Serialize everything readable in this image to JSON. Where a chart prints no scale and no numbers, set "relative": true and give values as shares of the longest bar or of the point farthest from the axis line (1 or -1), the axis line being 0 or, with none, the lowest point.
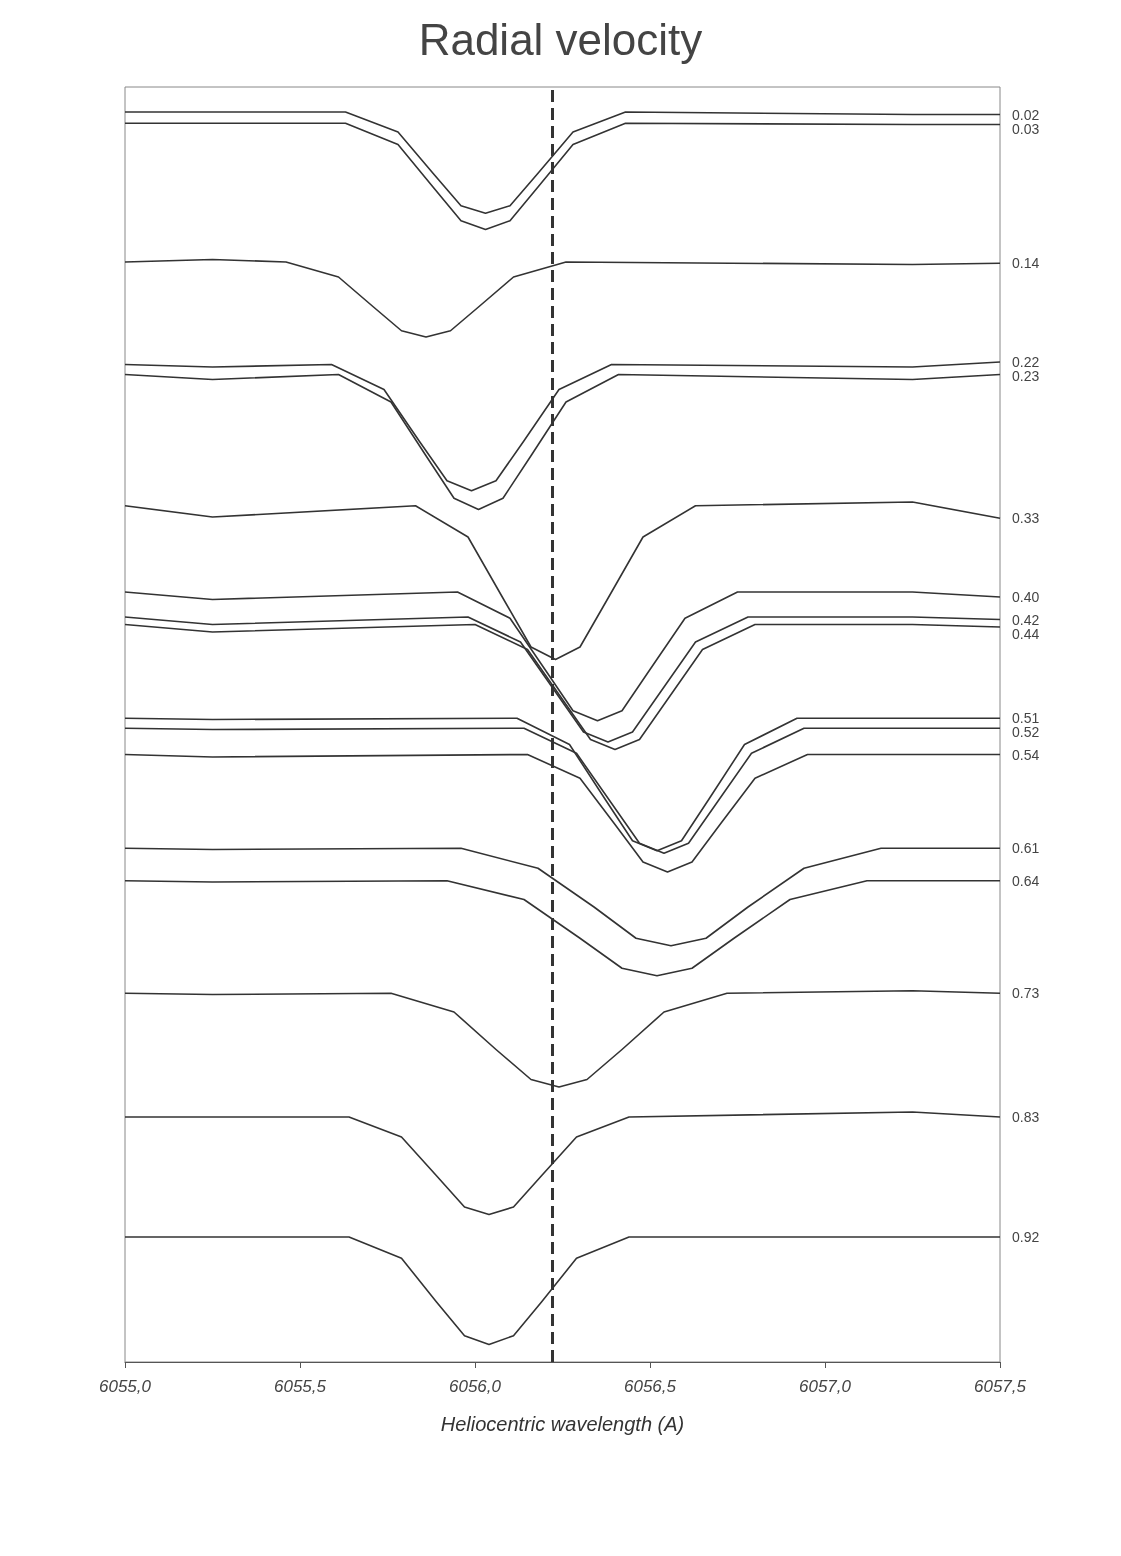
{
  "chart_data": {
    "type": "line",
    "title": "Radial velocity",
    "xlabel": "Heliocentric wavelength (A)",
    "relative": true,
    "xlim": [
      6055.0,
      6057.5
    ],
    "xticks": [
      {
        "value": 6055.0,
        "label": "6055,0"
      },
      {
        "value": 6055.5,
        "label": "6055,5"
      },
      {
        "value": 6056.0,
        "label": "6056,0"
      },
      {
        "value": 6056.5,
        "label": "6056,5"
      },
      {
        "value": 6057.0,
        "label": "6057,0"
      },
      {
        "value": 6057.5,
        "label": "6057,5"
      }
    ],
    "grid": false,
    "legend": false,
    "marker": "none",
    "line_style": "solid",
    "ref_lines": [
      {
        "axis": "x",
        "value": 6056.22,
        "label": null,
        "color": "#333333",
        "line_style": "dashed"
      }
    ],
    "series": [
      {
        "name": "0.02",
        "color": "#333333",
        "x": [
          6055.0,
          6055.25,
          6055.63,
          6055.78,
          6055.88,
          6055.96,
          6056.03,
          6056.1,
          6056.18,
          6056.28,
          6056.43,
          6057.25,
          6057.5
        ],
        "values": [
          1.0,
          1.0,
          1.0,
          0.984,
          0.951,
          0.925,
          0.919,
          0.925,
          0.951,
          0.984,
          1.0,
          0.998,
          0.998
        ]
      },
      {
        "name": "0.03",
        "color": "#333333",
        "x": [
          6055.0,
          6055.25,
          6055.63,
          6055.78,
          6055.88,
          6055.96,
          6056.03,
          6056.1,
          6056.18,
          6056.28,
          6056.43,
          6057.25,
          6057.5
        ],
        "values": [
          0.991,
          0.991,
          0.991,
          0.974,
          0.94,
          0.913,
          0.906,
          0.913,
          0.94,
          0.974,
          0.991,
          0.99,
          0.99
        ]
      },
      {
        "name": "0.14",
        "color": "#333333",
        "x": [
          6055.0,
          6055.25,
          6055.46,
          6055.61,
          6055.71,
          6055.79,
          6055.86,
          6055.93,
          6056.01,
          6056.11,
          6056.26,
          6057.25,
          6057.5
        ],
        "values": [
          0.88,
          0.882,
          0.88,
          0.868,
          0.844,
          0.825,
          0.82,
          0.825,
          0.844,
          0.868,
          0.88,
          0.878,
          0.879
        ]
      },
      {
        "name": "0.22",
        "color": "#333333",
        "x": [
          6055.0,
          6055.25,
          6055.59,
          6055.74,
          6055.84,
          6055.92,
          6055.99,
          6056.06,
          6056.14,
          6056.24,
          6056.39,
          6057.25,
          6057.5
        ],
        "values": [
          0.798,
          0.796,
          0.798,
          0.778,
          0.737,
          0.705,
          0.697,
          0.705,
          0.737,
          0.778,
          0.798,
          0.796,
          0.8
        ]
      },
      {
        "name": "0.23",
        "color": "#333333",
        "x": [
          6055.0,
          6055.25,
          6055.61,
          6055.76,
          6055.86,
          6055.94,
          6056.01,
          6056.08,
          6056.16,
          6056.26,
          6056.41,
          6057.25,
          6057.5
        ],
        "values": [
          0.79,
          0.786,
          0.79,
          0.768,
          0.725,
          0.691,
          0.682,
          0.691,
          0.725,
          0.768,
          0.79,
          0.786,
          0.79
        ]
      },
      {
        "name": "0.33",
        "color": "#333333",
        "x": [
          6055.0,
          6055.25,
          6055.83,
          6055.98,
          6056.08,
          6056.16,
          6056.23,
          6056.3,
          6056.38,
          6056.48,
          6056.63,
          6057.25,
          6057.5
        ],
        "values": [
          0.685,
          0.676,
          0.685,
          0.66,
          0.611,
          0.572,
          0.562,
          0.572,
          0.611,
          0.66,
          0.685,
          0.688,
          0.675
        ]
      },
      {
        "name": "0.40",
        "color": "#333333",
        "x": [
          6055.0,
          6055.25,
          6055.95,
          6056.1,
          6056.2,
          6056.28,
          6056.35,
          6056.42,
          6056.5,
          6056.6,
          6056.75,
          6057.25,
          6057.5
        ],
        "values": [
          0.616,
          0.61,
          0.616,
          0.595,
          0.554,
          0.521,
          0.513,
          0.521,
          0.554,
          0.595,
          0.616,
          0.616,
          0.612
        ]
      },
      {
        "name": "0.42",
        "color": "#333333",
        "x": [
          6055.0,
          6055.25,
          6055.98,
          6056.13,
          6056.23,
          6056.31,
          6056.38,
          6056.45,
          6056.53,
          6056.63,
          6056.78,
          6057.25,
          6057.5
        ],
        "values": [
          0.596,
          0.59,
          0.596,
          0.576,
          0.536,
          0.504,
          0.496,
          0.504,
          0.536,
          0.576,
          0.596,
          0.596,
          0.594
        ]
      },
      {
        "name": "0.44",
        "color": "#333333",
        "x": [
          6055.0,
          6055.25,
          6056.0,
          6056.15,
          6056.25,
          6056.33,
          6056.4,
          6056.47,
          6056.55,
          6056.65,
          6056.8,
          6057.25,
          6057.5
        ],
        "values": [
          0.59,
          0.584,
          0.59,
          0.57,
          0.53,
          0.498,
          0.49,
          0.498,
          0.53,
          0.57,
          0.59,
          0.59,
          0.588
        ]
      },
      {
        "name": "0.51",
        "color": "#333333",
        "x": [
          6055.0,
          6055.25,
          6056.12,
          6056.27,
          6056.37,
          6056.45,
          6056.52,
          6056.59,
          6056.67,
          6056.77,
          6056.92,
          6057.25,
          6057.5
        ],
        "values": [
          0.515,
          0.514,
          0.515,
          0.494,
          0.451,
          0.417,
          0.409,
          0.417,
          0.451,
          0.494,
          0.515,
          0.515,
          0.515
        ]
      },
      {
        "name": "0.52",
        "color": "#333333",
        "x": [
          6055.0,
          6055.25,
          6056.14,
          6056.29,
          6056.39,
          6056.47,
          6056.54,
          6056.61,
          6056.69,
          6056.79,
          6056.94,
          6057.25,
          6057.5
        ],
        "values": [
          0.507,
          0.506,
          0.507,
          0.487,
          0.447,
          0.415,
          0.407,
          0.415,
          0.447,
          0.487,
          0.507,
          0.507,
          0.507
        ]
      },
      {
        "name": "0.54",
        "color": "#333333",
        "x": [
          6055.0,
          6055.25,
          6056.15,
          6056.3,
          6056.4,
          6056.48,
          6056.55,
          6056.62,
          6056.7,
          6056.8,
          6056.95,
          6057.25,
          6057.5
        ],
        "values": [
          0.486,
          0.484,
          0.486,
          0.467,
          0.43,
          0.4,
          0.392,
          0.4,
          0.43,
          0.467,
          0.486,
          0.486,
          0.486
        ]
      },
      {
        "name": "0.61",
        "color": "#333333",
        "x": [
          6055.0,
          6055.25,
          6055.96,
          6056.18,
          6056.34,
          6056.46,
          6056.56,
          6056.66,
          6056.78,
          6056.94,
          6057.16,
          6057.25,
          6057.5
        ],
        "values": [
          0.411,
          0.41,
          0.411,
          0.395,
          0.364,
          0.339,
          0.333,
          0.339,
          0.364,
          0.395,
          0.411,
          0.411,
          0.411
        ]
      },
      {
        "name": "0.64",
        "color": "#333333",
        "x": [
          6055.0,
          6055.25,
          6055.92,
          6056.14,
          6056.3,
          6056.42,
          6056.52,
          6056.62,
          6056.74,
          6056.9,
          6057.12,
          6057.25,
          6057.5
        ],
        "values": [
          0.385,
          0.384,
          0.385,
          0.37,
          0.339,
          0.315,
          0.309,
          0.315,
          0.339,
          0.37,
          0.385,
          0.385,
          0.385
        ]
      },
      {
        "name": "0.73",
        "color": "#333333",
        "x": [
          6055.0,
          6055.25,
          6055.76,
          6055.94,
          6056.06,
          6056.16,
          6056.24,
          6056.32,
          6056.42,
          6056.54,
          6056.72,
          6057.25,
          6057.5
        ],
        "values": [
          0.295,
          0.294,
          0.295,
          0.28,
          0.25,
          0.226,
          0.22,
          0.226,
          0.25,
          0.28,
          0.295,
          0.297,
          0.295
        ]
      },
      {
        "name": "0.83",
        "color": "#333333",
        "x": [
          6055.0,
          6055.25,
          6055.64,
          6055.79,
          6055.89,
          6055.97,
          6056.04,
          6056.11,
          6056.19,
          6056.29,
          6056.44,
          6057.25,
          6057.5
        ],
        "values": [
          0.196,
          0.196,
          0.196,
          0.18,
          0.149,
          0.124,
          0.118,
          0.124,
          0.149,
          0.18,
          0.196,
          0.2,
          0.196
        ]
      },
      {
        "name": "0.92",
        "color": "#333333",
        "x": [
          6055.0,
          6055.25,
          6055.64,
          6055.79,
          6055.89,
          6055.97,
          6056.04,
          6056.11,
          6056.19,
          6056.29,
          6056.44,
          6057.25,
          6057.5
        ],
        "values": [
          0.1,
          0.1,
          0.1,
          0.083,
          0.048,
          0.021,
          0.014,
          0.021,
          0.048,
          0.083,
          0.1,
          0.1,
          0.1
        ]
      }
    ]
  }
}
